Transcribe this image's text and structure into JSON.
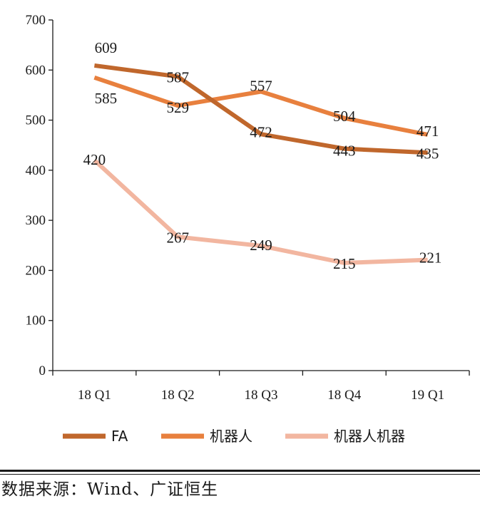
{
  "chart_data": {
    "type": "line",
    "categories": [
      "18 Q1",
      "18 Q2",
      "18 Q3",
      "18 Q4",
      "19 Q1"
    ],
    "series": [
      {
        "name": "FA",
        "values": [
          609,
          587,
          472,
          443,
          435
        ],
        "color": "#c0672c"
      },
      {
        "name": "机器人",
        "values": [
          585,
          529,
          557,
          504,
          471
        ],
        "color": "#e8803e"
      },
      {
        "name": "机器人机器",
        "values": [
          420,
          267,
          249,
          215,
          221
        ],
        "color": "#f2b6a0"
      }
    ],
    "ylim": [
      0,
      700
    ],
    "yticks": [
      0,
      100,
      200,
      300,
      400,
      500,
      600,
      700
    ],
    "grid": false,
    "legend": "bottom",
    "title": "",
    "xlabel": "",
    "ylabel": ""
  },
  "footer": {
    "source": "数据来源：Wind、广证恒生"
  }
}
